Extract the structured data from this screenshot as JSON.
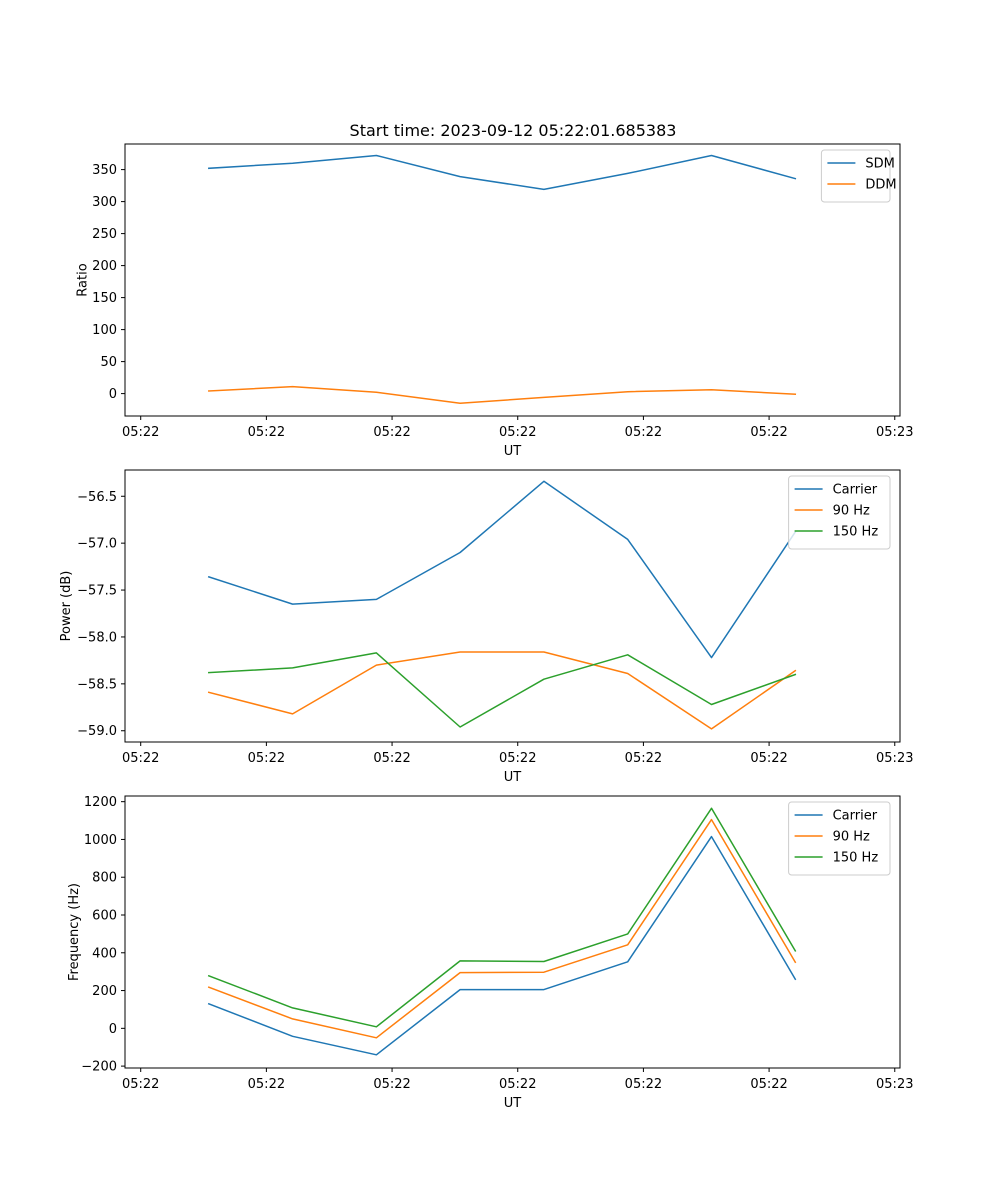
{
  "figure": {
    "title": "Start time: 2023-09-12 05:22:01.685383"
  },
  "chart_data": [
    {
      "type": "line",
      "title": "Start time: 2023-09-12 05:22:01.685383",
      "xlabel": "UT",
      "ylabel": "Ratio",
      "x": [
        0.8,
        1.6,
        2.4,
        3.2,
        4.0,
        4.8,
        5.6,
        6.4
      ],
      "xlim": [
        0,
        7.4
      ],
      "xticks": [
        0.15,
        1.35,
        2.55,
        3.75,
        4.95,
        6.15,
        7.35
      ],
      "xtick_labels": [
        "05:22",
        "05:22",
        "05:22",
        "05:22",
        "05:22",
        "05:22",
        "05:23"
      ],
      "ylim": [
        -35,
        390
      ],
      "yticks": [
        0,
        50,
        100,
        150,
        200,
        250,
        300,
        350
      ],
      "ytick_labels": [
        "0",
        "50",
        "100",
        "150",
        "200",
        "250",
        "300",
        "350"
      ],
      "legend": "top-right",
      "series": [
        {
          "name": "SDM",
          "color": "#1f77b4",
          "values": [
            352,
            360,
            372,
            339,
            319,
            344,
            372,
            336
          ]
        },
        {
          "name": "DDM",
          "color": "#ff7f0e",
          "values": [
            4,
            11,
            2,
            -15,
            -6,
            3,
            6,
            -1
          ]
        }
      ]
    },
    {
      "type": "line",
      "xlabel": "UT",
      "ylabel": "Power (dB)",
      "x": [
        0.8,
        1.6,
        2.4,
        3.2,
        4.0,
        4.8,
        5.6,
        6.4
      ],
      "xlim": [
        0,
        7.4
      ],
      "xticks": [
        0.15,
        1.35,
        2.55,
        3.75,
        4.95,
        6.15,
        7.35
      ],
      "xtick_labels": [
        "05:22",
        "05:22",
        "05:22",
        "05:22",
        "05:22",
        "05:22",
        "05:23"
      ],
      "ylim": [
        -59.12,
        -56.22
      ],
      "yticks": [
        -59.0,
        -58.5,
        -58.0,
        -57.5,
        -57.0,
        -56.5
      ],
      "ytick_labels": [
        "−59.0",
        "−58.5",
        "−58.0",
        "−57.5",
        "−57.0",
        "−56.5"
      ],
      "legend": "top-right",
      "series": [
        {
          "name": "Carrier",
          "color": "#1f77b4",
          "values": [
            -57.36,
            -57.65,
            -57.6,
            -57.1,
            -56.34,
            -56.96,
            -58.22,
            -56.88
          ]
        },
        {
          "name": "90 Hz",
          "color": "#ff7f0e",
          "values": [
            -58.59,
            -58.82,
            -58.3,
            -58.16,
            -58.16,
            -58.39,
            -58.98,
            -58.36
          ]
        },
        {
          "name": "150 Hz",
          "color": "#2ca02c",
          "values": [
            -58.38,
            -58.33,
            -58.17,
            -58.96,
            -58.45,
            -58.19,
            -58.72,
            -58.4
          ]
        }
      ]
    },
    {
      "type": "line",
      "xlabel": "UT",
      "ylabel": "Frequency (Hz)",
      "x": [
        0.8,
        1.6,
        2.4,
        3.2,
        4.0,
        4.8,
        5.6,
        6.4
      ],
      "xlim": [
        0,
        7.4
      ],
      "xticks": [
        0.15,
        1.35,
        2.55,
        3.75,
        4.95,
        6.15,
        7.35
      ],
      "xtick_labels": [
        "05:22",
        "05:22",
        "05:22",
        "05:22",
        "05:22",
        "05:22",
        "05:23"
      ],
      "ylim": [
        -210,
        1230
      ],
      "yticks": [
        -200,
        0,
        200,
        400,
        600,
        800,
        1000,
        1200
      ],
      "ytick_labels": [
        "−200",
        "0",
        "200",
        "400",
        "600",
        "800",
        "1000",
        "1200"
      ],
      "legend": "top-right",
      "series": [
        {
          "name": "Carrier",
          "color": "#1f77b4",
          "values": [
            130,
            -42,
            -140,
            205,
            205,
            352,
            1015,
            260
          ]
        },
        {
          "name": "90 Hz",
          "color": "#ff7f0e",
          "values": [
            218,
            50,
            -50,
            295,
            297,
            442,
            1105,
            350
          ]
        },
        {
          "name": "150 Hz",
          "color": "#2ca02c",
          "values": [
            278,
            108,
            8,
            357,
            354,
            500,
            1165,
            410
          ]
        }
      ]
    }
  ]
}
